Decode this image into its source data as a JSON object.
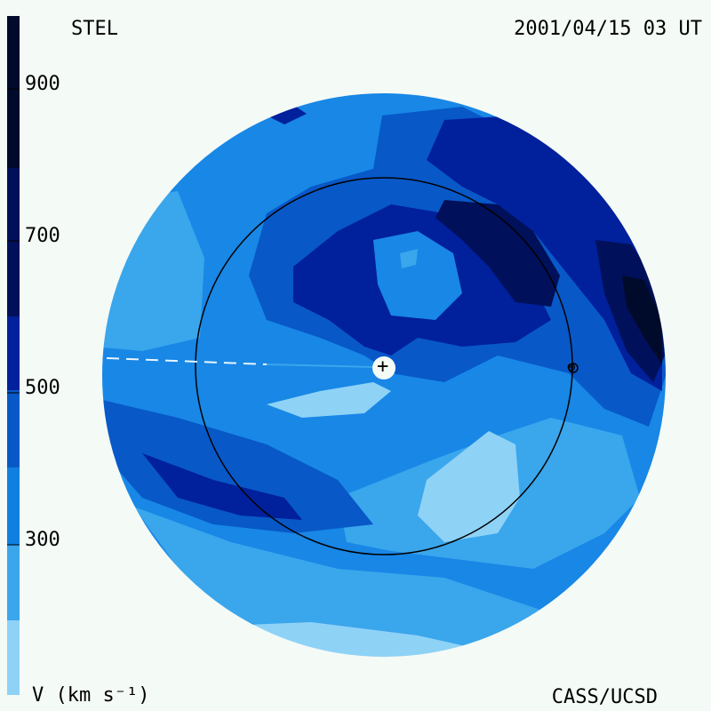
{
  "header": {
    "observatory": "STEL",
    "timestamp": "2001/04/15 03 UT"
  },
  "footer": {
    "credit": "CASS/UCSD"
  },
  "colorbar": {
    "unit_label": "V (km s⁻¹)",
    "ticks": [
      "900",
      "700",
      "500",
      "300"
    ],
    "colors": [
      "#000a2a",
      "#00105a",
      "#00209c",
      "#0858c8",
      "#1080e0",
      "#3aa6ec",
      "#8ed2f6",
      "#d6eefa"
    ]
  },
  "map": {
    "background": "#1887e6",
    "observer_marker": "+",
    "earth_marker": "⊕"
  }
}
